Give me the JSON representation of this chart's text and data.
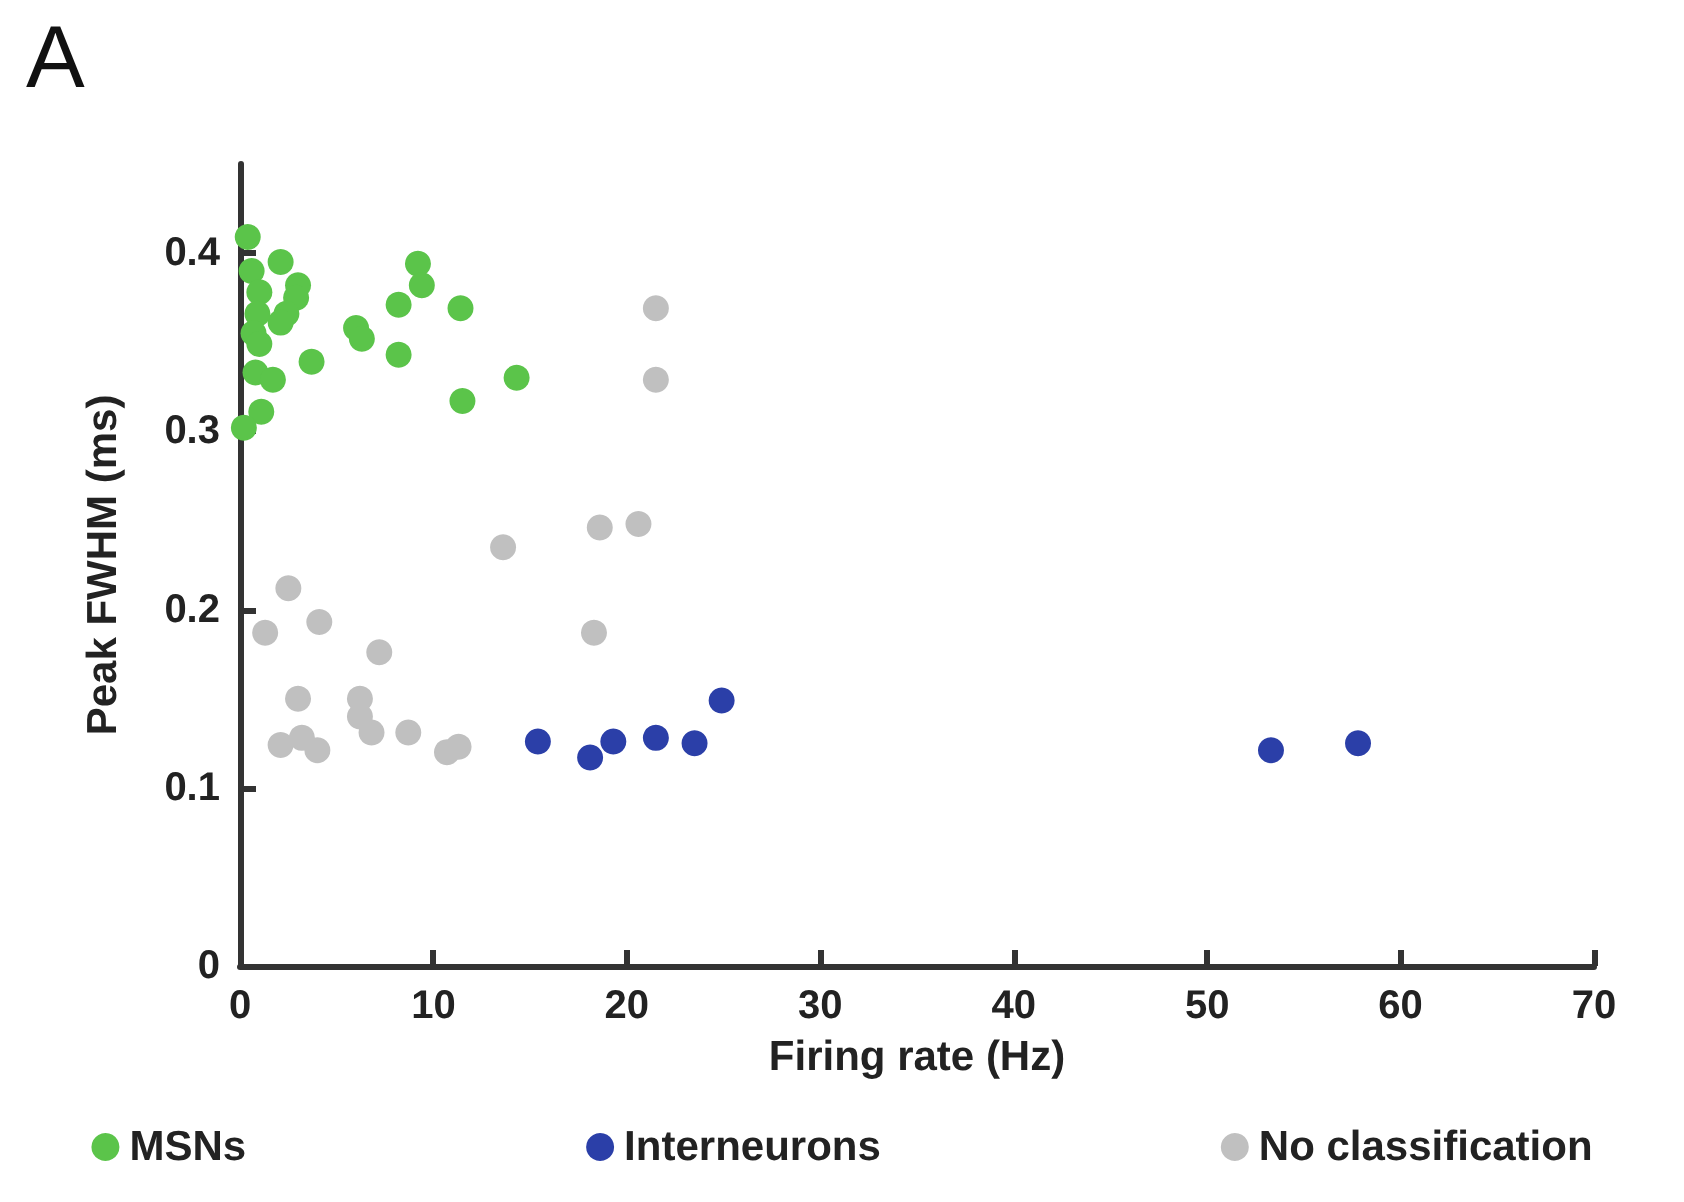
{
  "chart_data": {
    "type": "scatter",
    "title": "A",
    "xlabel": "Firing rate (Hz)",
    "ylabel": "Peak FWHM (ms)",
    "xlim": [
      0,
      70
    ],
    "xticks": [
      0,
      10,
      20,
      30,
      40,
      50,
      60,
      70
    ],
    "ylim": [
      0,
      0.45
    ],
    "yticks": [
      0,
      0.1,
      0.2,
      0.3,
      0.4
    ],
    "grid": false,
    "legend": "bottom",
    "marker": "circle",
    "series": [
      {
        "name": "MSNs",
        "color": "#5bc44a",
        "x": [
          0.4,
          2.1,
          9.2,
          0.6,
          9.4,
          3.0,
          1.0,
          2.9,
          8.2,
          11.4,
          2.4,
          2.1,
          0.9,
          6.0,
          6.3,
          0.7,
          1.0,
          8.2,
          3.7,
          0.8,
          1.7,
          14.3,
          11.5,
          1.1,
          0.2
        ],
        "values": [
          0.409,
          0.395,
          0.394,
          0.39,
          0.382,
          0.382,
          0.378,
          0.375,
          0.371,
          0.369,
          0.366,
          0.361,
          0.366,
          0.358,
          0.352,
          0.355,
          0.349,
          0.343,
          0.339,
          0.333,
          0.329,
          0.33,
          0.317,
          0.311,
          0.302
        ]
      },
      {
        "name": "Interneurons",
        "color": "#2b3fa8",
        "x": [
          15.4,
          18.1,
          19.3,
          21.5,
          23.5,
          24.9,
          53.3,
          57.8
        ],
        "values": [
          0.126,
          0.117,
          0.126,
          0.128,
          0.125,
          0.149,
          0.121,
          0.125
        ]
      },
      {
        "name": "No classification",
        "color": "#c0c0c0",
        "x": [
          21.5,
          21.5,
          18.6,
          20.6,
          13.6,
          2.5,
          1.3,
          4.1,
          18.3,
          7.2,
          3.0,
          6.2,
          6.2,
          6.8,
          8.7,
          2.1,
          3.2,
          4.0,
          10.7,
          11.3
        ],
        "values": [
          0.369,
          0.329,
          0.246,
          0.248,
          0.235,
          0.212,
          0.187,
          0.193,
          0.187,
          0.176,
          0.15,
          0.15,
          0.14,
          0.131,
          0.131,
          0.124,
          0.128,
          0.121,
          0.12,
          0.123
        ]
      }
    ]
  }
}
